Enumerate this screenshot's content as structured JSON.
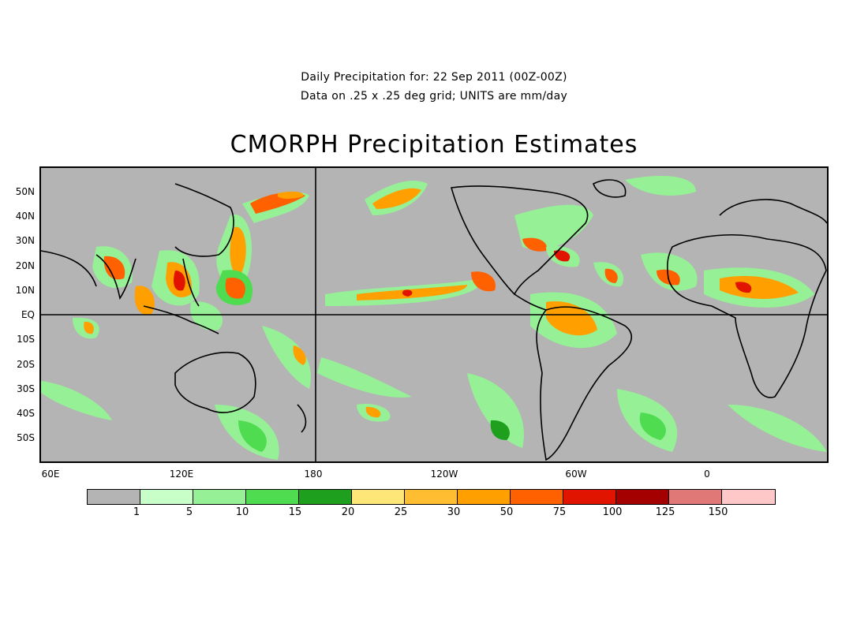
{
  "header": {
    "subtitle_line1": "Daily Precipitation for: 22 Sep 2011 (00Z-00Z)",
    "subtitle_line2": "Data on .25 x .25 deg grid; UNITS are mm/day",
    "title": "CMORPH Precipitation Estimates"
  },
  "map": {
    "lat_labels": [
      "50N",
      "40N",
      "30N",
      "20N",
      "10N",
      "EQ",
      "10S",
      "20S",
      "30S",
      "40S",
      "50S"
    ],
    "lon_labels": [
      "60E",
      "120E",
      "180",
      "120W",
      "60W",
      "0"
    ],
    "background_color": "#b4b4b4",
    "grid_lines": [
      "equator",
      "dateline"
    ]
  },
  "colorbar": {
    "tick_labels": [
      "1",
      "5",
      "10",
      "15",
      "20",
      "25",
      "30",
      "50",
      "75",
      "100",
      "125",
      "150"
    ],
    "colors": [
      "#b4b4b4",
      "#c8ffc8",
      "#96f096",
      "#50dc50",
      "#1ea01e",
      "#ffe678",
      "#ffbe32",
      "#ffa000",
      "#ff6000",
      "#e11400",
      "#a50000",
      "#e17878",
      "#ffc8c8"
    ]
  }
}
